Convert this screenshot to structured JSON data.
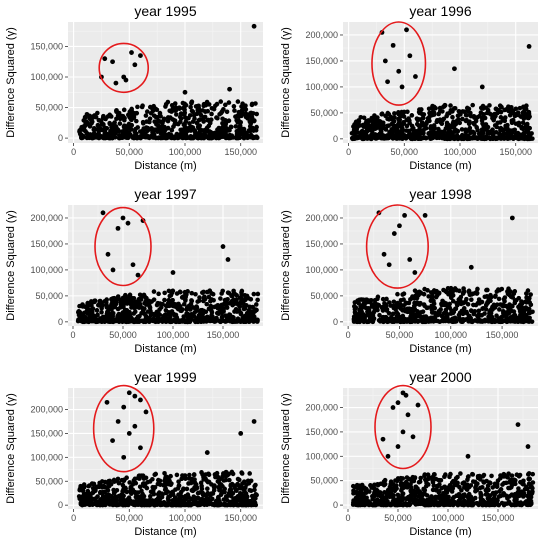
{
  "colors": {
    "panel_bg": "#ebebeb",
    "grid_major": "#ffffff",
    "point": "#000000",
    "ellipse": "#e41a1c"
  },
  "chart_data": [
    {
      "type": "scatter",
      "title": "year 1995",
      "xlabel": "Distance (m)",
      "ylabel": "Difference Squared (γ)",
      "xlim": [
        -5000,
        170000
      ],
      "ylim": [
        -8000,
        190000
      ],
      "xticks": [
        0,
        50000,
        100000,
        150000
      ],
      "xtick_labels": [
        "0",
        "50,000",
        "100,000",
        "150,000"
      ],
      "yticks": [
        0,
        50000,
        100000,
        150000
      ],
      "ytick_labels": [
        "0",
        "50,000",
        "100,000",
        "150,000"
      ],
      "grid": true,
      "legend": "none",
      "dense_band": {
        "x_from": 5000,
        "x_to": 165000,
        "y_max": 60000,
        "n": 650
      },
      "points": [
        [
          28000,
          130000
        ],
        [
          35000,
          125000
        ],
        [
          45000,
          100000
        ],
        [
          52000,
          140000
        ],
        [
          55000,
          120000
        ],
        [
          60000,
          135000
        ],
        [
          47000,
          95000
        ],
        [
          38000,
          90000
        ],
        [
          25000,
          100000
        ],
        [
          162000,
          183000
        ],
        [
          100000,
          75000
        ],
        [
          140000,
          80000
        ]
      ],
      "annotation": {
        "shape": "ellipse",
        "cx": 45000,
        "cy": 115000,
        "rx": 22000,
        "ry": 40000
      }
    },
    {
      "type": "scatter",
      "title": "year 1996",
      "xlabel": "Distance (m)",
      "ylabel": "Difference Squared (γ)",
      "xlim": [
        -5000,
        170000
      ],
      "ylim": [
        -8000,
        225000
      ],
      "xticks": [
        0,
        50000,
        100000,
        150000
      ],
      "xtick_labels": [
        "0",
        "50,000",
        "100,000",
        "150,000"
      ],
      "yticks": [
        0,
        50000,
        100000,
        150000,
        200000
      ],
      "ytick_labels": [
        "0",
        "50,000",
        "100,000",
        "150,000",
        "200,000"
      ],
      "grid": true,
      "legend": "none",
      "dense_band": {
        "x_from": 3000,
        "x_to": 165000,
        "y_max": 65000,
        "n": 650
      },
      "points": [
        [
          30000,
          205000
        ],
        [
          52000,
          210000
        ],
        [
          40000,
          180000
        ],
        [
          55000,
          160000
        ],
        [
          33000,
          150000
        ],
        [
          45000,
          130000
        ],
        [
          60000,
          120000
        ],
        [
          35000,
          110000
        ],
        [
          48000,
          100000
        ],
        [
          162000,
          178000
        ],
        [
          95000,
          135000
        ],
        [
          120000,
          100000
        ]
      ],
      "annotation": {
        "shape": "ellipse",
        "cx": 45000,
        "cy": 145000,
        "rx": 24000,
        "ry": 80000
      }
    },
    {
      "type": "scatter",
      "title": "year 1997",
      "xlabel": "Distance (m)",
      "ylabel": "Difference Squared (γ)",
      "xlim": [
        -5000,
        190000
      ],
      "ylim": [
        -8000,
        225000
      ],
      "xticks": [
        0,
        50000,
        100000,
        150000
      ],
      "xtick_labels": [
        "0",
        "50,000",
        "100,000",
        "150,000"
      ],
      "yticks": [
        0,
        50000,
        100000,
        150000,
        200000
      ],
      "ytick_labels": [
        "0",
        "50,000",
        "100,000",
        "150,000",
        "200,000"
      ],
      "grid": true,
      "legend": "none",
      "dense_band": {
        "x_from": 5000,
        "x_to": 185000,
        "y_max": 60000,
        "n": 650
      },
      "points": [
        [
          30000,
          210000
        ],
        [
          50000,
          200000
        ],
        [
          70000,
          195000
        ],
        [
          55000,
          190000
        ],
        [
          45000,
          180000
        ],
        [
          35000,
          130000
        ],
        [
          60000,
          110000
        ],
        [
          40000,
          100000
        ],
        [
          65000,
          90000
        ],
        [
          150000,
          145000
        ],
        [
          155000,
          120000
        ],
        [
          100000,
          95000
        ]
      ],
      "annotation": {
        "shape": "ellipse",
        "cx": 50000,
        "cy": 145000,
        "rx": 28000,
        "ry": 75000
      }
    },
    {
      "type": "scatter",
      "title": "year 1998",
      "xlabel": "Distance (m)",
      "ylabel": "Difference Squared (γ)",
      "xlim": [
        -5000,
        185000
      ],
      "ylim": [
        -8000,
        225000
      ],
      "xticks": [
        0,
        50000,
        100000,
        150000
      ],
      "xtick_labels": [
        "0",
        "50,000",
        "100,000",
        "150,000"
      ],
      "yticks": [
        0,
        50000,
        100000,
        150000,
        200000
      ],
      "ytick_labels": [
        "0",
        "50,000",
        "100,000",
        "150,000",
        "200,000"
      ],
      "grid": true,
      "legend": "none",
      "dense_band": {
        "x_from": 5000,
        "x_to": 180000,
        "y_max": 65000,
        "n": 650
      },
      "points": [
        [
          30000,
          210000
        ],
        [
          55000,
          205000
        ],
        [
          75000,
          205000
        ],
        [
          50000,
          185000
        ],
        [
          45000,
          170000
        ],
        [
          35000,
          130000
        ],
        [
          60000,
          120000
        ],
        [
          40000,
          110000
        ],
        [
          65000,
          95000
        ],
        [
          160000,
          200000
        ],
        [
          120000,
          105000
        ]
      ],
      "annotation": {
        "shape": "ellipse",
        "cx": 48000,
        "cy": 145000,
        "rx": 30000,
        "ry": 80000
      }
    },
    {
      "type": "scatter",
      "title": "year 1999",
      "xlabel": "Distance (m)",
      "ylabel": "Difference Squared (γ)",
      "xlim": [
        -5000,
        170000
      ],
      "ylim": [
        -8000,
        245000
      ],
      "xticks": [
        0,
        50000,
        100000,
        150000
      ],
      "xtick_labels": [
        "0",
        "50,000",
        "100,000",
        "150,000"
      ],
      "yticks": [
        0,
        50000,
        100000,
        150000,
        200000
      ],
      "ytick_labels": [
        "0",
        "50,000",
        "100,000",
        "150,000",
        "200,000"
      ],
      "grid": true,
      "legend": "none",
      "dense_band": {
        "x_from": 5000,
        "x_to": 165000,
        "y_max": 70000,
        "n": 700
      },
      "points": [
        [
          50000,
          235000
        ],
        [
          55000,
          228000
        ],
        [
          60000,
          220000
        ],
        [
          30000,
          215000
        ],
        [
          45000,
          205000
        ],
        [
          65000,
          195000
        ],
        [
          40000,
          175000
        ],
        [
          55000,
          165000
        ],
        [
          50000,
          150000
        ],
        [
          35000,
          135000
        ],
        [
          60000,
          120000
        ],
        [
          45000,
          100000
        ],
        [
          162000,
          175000
        ],
        [
          150000,
          150000
        ],
        [
          120000,
          110000
        ]
      ],
      "annotation": {
        "shape": "ellipse",
        "cx": 45000,
        "cy": 160000,
        "rx": 27000,
        "ry": 90000
      }
    },
    {
      "type": "scatter",
      "title": "year 2000",
      "xlabel": "Distance (m)",
      "ylabel": "Difference Squared (γ)",
      "xlim": [
        -5000,
        190000
      ],
      "ylim": [
        -8000,
        240000
      ],
      "xticks": [
        0,
        50000,
        100000,
        150000
      ],
      "xtick_labels": [
        "0",
        "50,000",
        "100,000",
        "150,000"
      ],
      "yticks": [
        0,
        50000,
        100000,
        150000,
        200000
      ],
      "ytick_labels": [
        "0",
        "50,000",
        "100,000",
        "150,000",
        "200,000"
      ],
      "grid": true,
      "legend": "none",
      "dense_band": {
        "x_from": 5000,
        "x_to": 185000,
        "y_max": 65000,
        "n": 650
      },
      "points": [
        [
          55000,
          230000
        ],
        [
          58000,
          225000
        ],
        [
          50000,
          210000
        ],
        [
          70000,
          205000
        ],
        [
          45000,
          200000
        ],
        [
          60000,
          185000
        ],
        [
          35000,
          135000
        ],
        [
          55000,
          150000
        ],
        [
          65000,
          140000
        ],
        [
          50000,
          120000
        ],
        [
          40000,
          100000
        ],
        [
          170000,
          165000
        ],
        [
          120000,
          100000
        ],
        [
          180000,
          120000
        ]
      ],
      "annotation": {
        "shape": "ellipse",
        "cx": 55000,
        "cy": 160000,
        "rx": 28000,
        "ry": 85000
      }
    }
  ]
}
